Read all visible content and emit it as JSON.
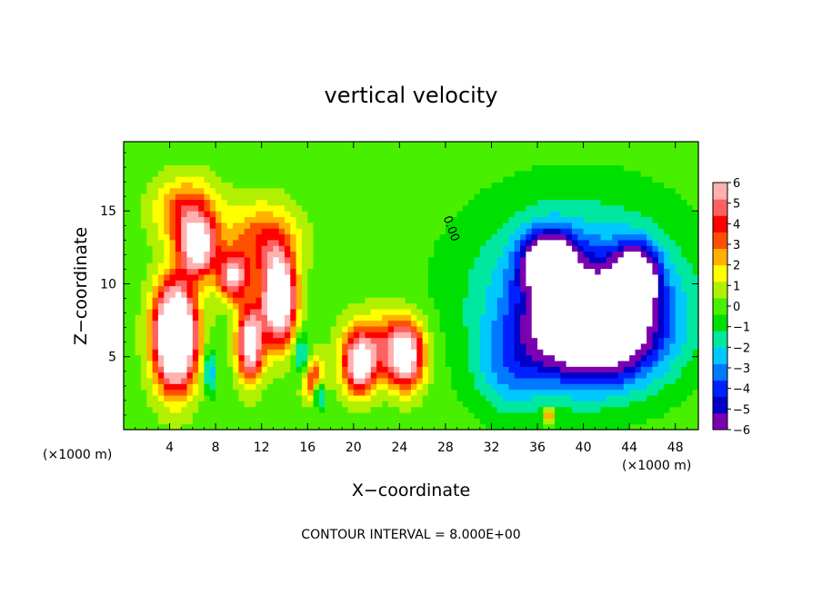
{
  "chart_data": {
    "type": "heatmap",
    "title": "vertical velocity",
    "xlabel": "X−coordinate",
    "ylabel": "Z−coordinate",
    "x_unit_label": "(×1000 m)",
    "y_unit_label": "(×1000 m)",
    "xlim": [
      0,
      50
    ],
    "ylim": [
      0,
      19.75
    ],
    "x_ticks": [
      4,
      8,
      12,
      16,
      20,
      24,
      28,
      32,
      36,
      40,
      44,
      48
    ],
    "y_ticks": [
      5,
      10,
      15
    ],
    "footer": "CONTOUR INTERVAL = 8.000E+00",
    "contour_label": "0.00",
    "colorbar": {
      "min": -6,
      "max": 6,
      "tick_values": [
        6,
        5,
        4,
        3,
        2,
        1,
        0,
        -1,
        -2,
        -3,
        -4,
        -5,
        -6
      ],
      "tick_labels": [
        "6",
        "5",
        "4",
        "3",
        "2",
        "1",
        "0",
        "−1",
        "−2",
        "−3",
        "−4",
        "−5",
        "−6"
      ],
      "colors": [
        "#7b00b0",
        "#0000c8",
        "#0020ff",
        "#0078ff",
        "#00c8ff",
        "#00e8a0",
        "#00e000",
        "#48f000",
        "#b0f000",
        "#ffff00",
        "#ffb000",
        "#ff5000",
        "#ff0000",
        "#ff6060",
        "#ffb0b0"
      ]
    },
    "features": [
      {
        "x": 4.5,
        "z": 6.5,
        "sx": 1.8,
        "sz": 3.5,
        "value": 12
      },
      {
        "x": 6.5,
        "z": 12.5,
        "sx": 1.6,
        "sz": 2.0,
        "value": 7
      },
      {
        "x": 5.5,
        "z": 15.0,
        "sx": 2.6,
        "sz": 2.2,
        "value": 4
      },
      {
        "x": 11.0,
        "z": 6.0,
        "sx": 1.1,
        "sz": 2.5,
        "value": 8
      },
      {
        "x": 13.5,
        "z": 9.0,
        "sx": 1.4,
        "sz": 3.0,
        "value": 10
      },
      {
        "x": 9.5,
        "z": 10.5,
        "sx": 1.3,
        "sz": 1.6,
        "value": 6
      },
      {
        "x": 12.0,
        "z": 13.0,
        "sx": 3.0,
        "sz": 2.5,
        "value": 3.5
      },
      {
        "x": 16.5,
        "z": 3.5,
        "sx": 1.0,
        "sz": 1.5,
        "value": 4
      },
      {
        "x": 20.5,
        "z": 4.5,
        "sx": 1.4,
        "sz": 2.0,
        "value": 7
      },
      {
        "x": 24.5,
        "z": 5.0,
        "sx": 1.6,
        "sz": 2.2,
        "value": 7
      },
      {
        "x": 22.5,
        "z": 6.0,
        "sx": 3.0,
        "sz": 2.2,
        "value": 3
      },
      {
        "x": 37.0,
        "z": 1.0,
        "sx": 0.5,
        "sz": 0.5,
        "value": 4
      },
      {
        "x": 7.5,
        "z": 4.0,
        "sx": 0.5,
        "sz": 1.6,
        "value": -3
      },
      {
        "x": 15.5,
        "z": 5.0,
        "sx": 0.6,
        "sz": 1.5,
        "value": -3
      },
      {
        "x": 17.0,
        "z": 2.5,
        "sx": 0.5,
        "sz": 1.0,
        "value": -4
      },
      {
        "x": 41.0,
        "z": 7.0,
        "sx": 5.5,
        "sz": 3.5,
        "value": -9
      },
      {
        "x": 37.0,
        "z": 11.5,
        "sx": 2.2,
        "sz": 2.0,
        "value": -8
      },
      {
        "x": 44.5,
        "z": 10.5,
        "sx": 1.8,
        "sz": 2.0,
        "value": -8
      },
      {
        "x": 39.5,
        "z": 9.5,
        "sx": 9.0,
        "sz": 6.0,
        "value": -3.5
      },
      {
        "x": 33.5,
        "z": 4.0,
        "sx": 3.0,
        "sz": 3.0,
        "value": -2
      }
    ]
  }
}
